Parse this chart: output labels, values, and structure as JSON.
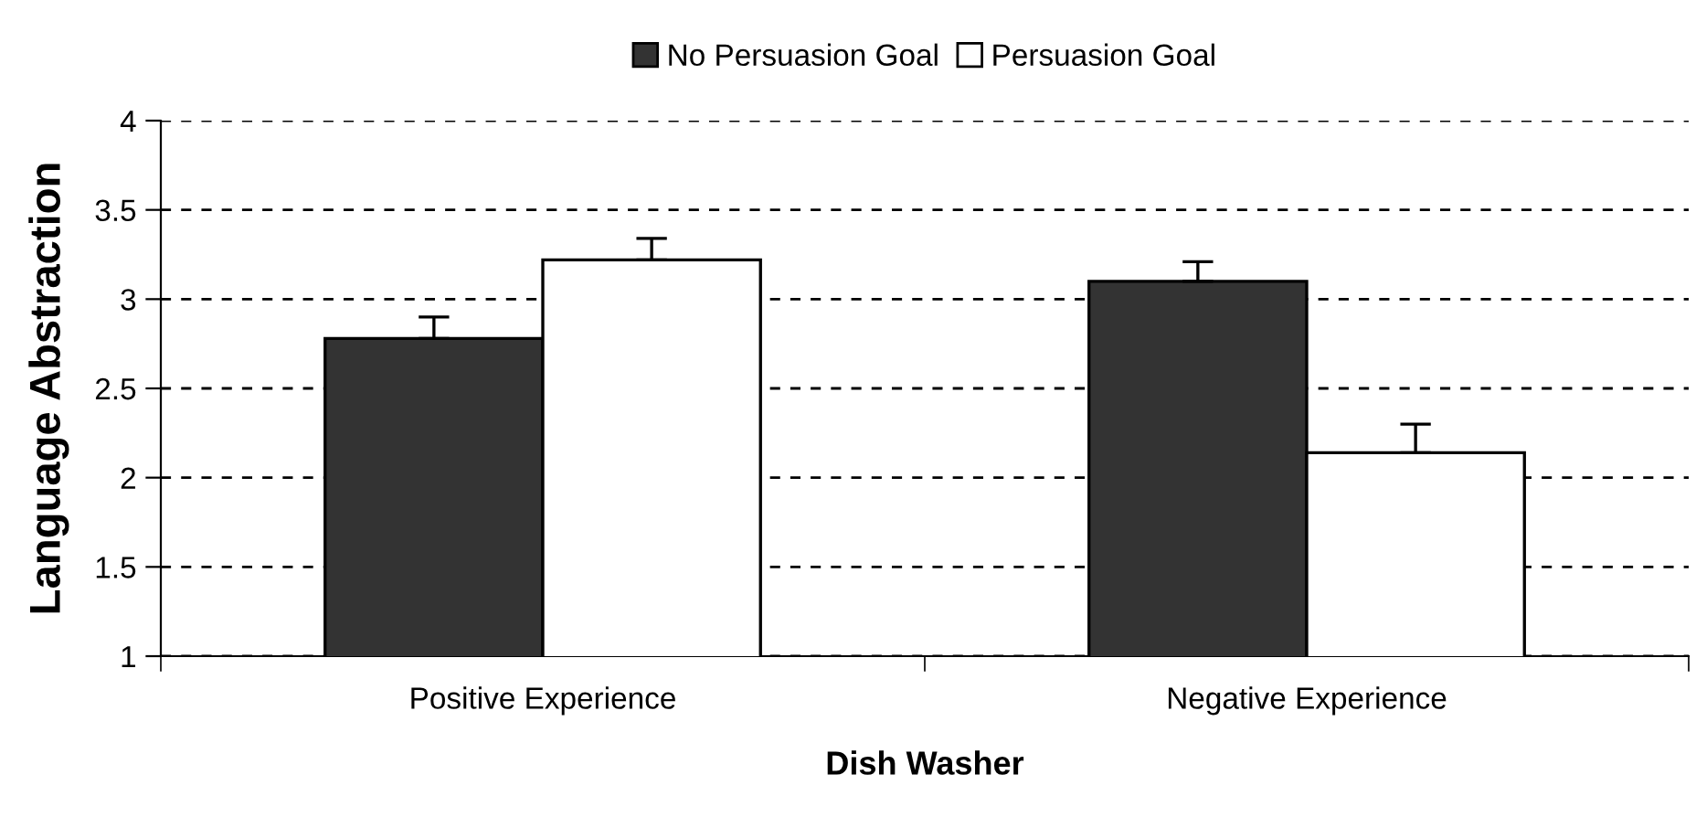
{
  "chart_data": {
    "type": "bar",
    "xlabel": "Dish Washer",
    "ylabel": "Language Abstraction",
    "categories": [
      "Positive Experience",
      "Negative Experience"
    ],
    "series": [
      {
        "name": "No Persuasion Goal",
        "color": "#333333",
        "values": [
          2.78,
          3.1
        ],
        "errors": [
          [
            2.78,
            2.9
          ],
          [
            3.1,
            3.21
          ]
        ]
      },
      {
        "name": "Persuasion Goal",
        "color": "#ffffff",
        "values": [
          3.22,
          2.14
        ],
        "errors": [
          [
            3.22,
            3.34
          ],
          [
            2.14,
            2.3
          ]
        ]
      }
    ],
    "ylim": [
      1,
      4
    ],
    "yticks": [
      1,
      1.5,
      2,
      2.5,
      3,
      3.5,
      4
    ],
    "grid": "y",
    "legend": "top"
  }
}
